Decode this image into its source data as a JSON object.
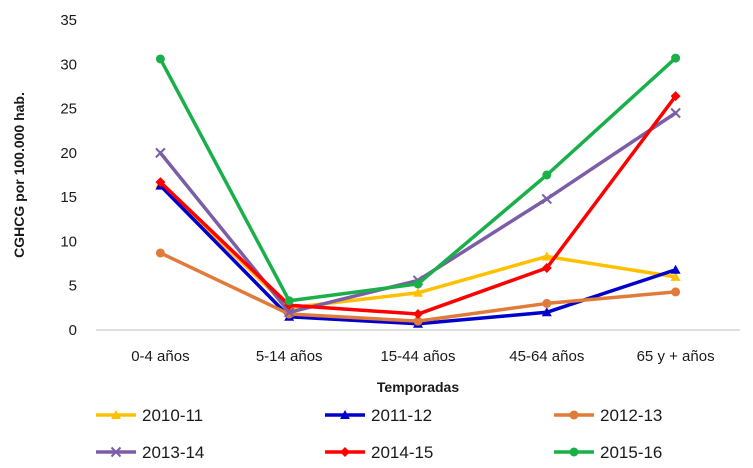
{
  "chart_data": {
    "type": "line",
    "categories": [
      "0-4 años",
      "5-14 años",
      "15-44 años",
      "45-64 años",
      "65 y + años"
    ],
    "xlabel": "Temporadas",
    "ylabel": "CGHCG por 100.000 hab.",
    "ylim": [
      0,
      35
    ],
    "yticks": [
      0,
      5,
      10,
      15,
      20,
      25,
      30,
      35
    ],
    "grid": false,
    "legend_position": "bottom",
    "series": [
      {
        "name": "2010-11",
        "color": "#FFC000",
        "marker": "triangle",
        "values": [
          16.5,
          2.5,
          4.2,
          8.3,
          6.0
        ]
      },
      {
        "name": "2011-12",
        "color": "#0000CC",
        "marker": "triangle",
        "values": [
          16.3,
          1.5,
          0.7,
          2.0,
          6.8
        ]
      },
      {
        "name": "2012-13",
        "color": "#E07B39",
        "marker": "circle",
        "values": [
          8.7,
          1.8,
          1.0,
          3.0,
          4.3
        ]
      },
      {
        "name": "2013-14",
        "color": "#7B5EA7",
        "marker": "x",
        "values": [
          20.0,
          2.0,
          5.6,
          14.8,
          24.5
        ]
      },
      {
        "name": "2014-15",
        "color": "#FF0000",
        "marker": "diamond",
        "values": [
          16.7,
          2.8,
          1.8,
          7.0,
          26.4
        ]
      },
      {
        "name": "2015-16",
        "color": "#19B04A",
        "marker": "circle",
        "values": [
          30.6,
          3.3,
          5.2,
          17.5,
          30.7
        ]
      }
    ]
  }
}
